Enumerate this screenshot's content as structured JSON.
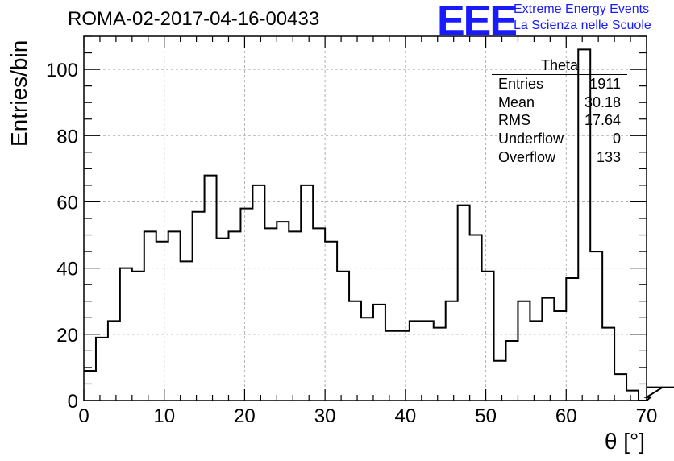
{
  "header": {
    "title": "ROMA-02-2017-04-16-00433",
    "logo_text": "EEE",
    "logo_line1": "Extreme Energy Events",
    "logo_line2": "La Scienza nelle Scuole"
  },
  "stats_box": {
    "title": "Theta",
    "rows": [
      {
        "label": "Entries",
        "value": "1911"
      },
      {
        "label": "Mean",
        "value": "30.18"
      },
      {
        "label": "RMS",
        "value": "17.64"
      },
      {
        "label": "Underflow",
        "value": "0"
      },
      {
        "label": "Overflow",
        "value": "133"
      }
    ]
  },
  "chart_data": {
    "type": "bar",
    "subtype": "histogram",
    "title": "ROMA-02-2017-04-16-00433",
    "xlabel": "θ [°]",
    "ylabel": "Entries/bin",
    "xlim": [
      0,
      70
    ],
    "ylim": [
      0,
      110
    ],
    "grid": true,
    "bin_width": 1.5,
    "bin_edges_start": 0,
    "x_ticks": [
      0,
      10,
      20,
      30,
      40,
      50,
      60,
      70
    ],
    "y_ticks": [
      0,
      20,
      40,
      60,
      80,
      100
    ],
    "series": [
      {
        "values": [
          9,
          19,
          24,
          40,
          39,
          51,
          48,
          51,
          42,
          57,
          68,
          49,
          51,
          58,
          65,
          52,
          54,
          51,
          65,
          52,
          48,
          39,
          30,
          25,
          29,
          21,
          21,
          24,
          24,
          22,
          30,
          59,
          50,
          39,
          12,
          18,
          30,
          24,
          31,
          27,
          37,
          106,
          45,
          22,
          8,
          3,
          0,
          1,
          4,
          4
        ]
      }
    ],
    "colors": {
      "line": "#000000",
      "grid": "#b0b0b0",
      "logo": "#1a1aff"
    }
  }
}
